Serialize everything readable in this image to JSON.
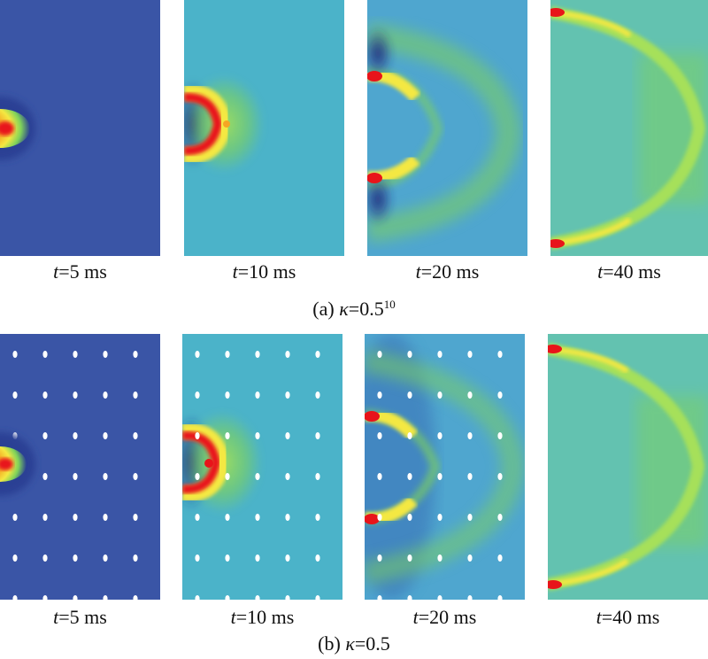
{
  "figure": {
    "row_a": {
      "caption_prefix": "(a) ",
      "kappa_symbol": "κ",
      "caption_value": "=0.5",
      "caption_exponent": "10",
      "panels": [
        {
          "t_symbol": "t",
          "time": "=5 ms"
        },
        {
          "t_symbol": "t",
          "time": "=10 ms"
        },
        {
          "t_symbol": "t",
          "time": "=20 ms"
        },
        {
          "t_symbol": "t",
          "time": "=40 ms"
        }
      ]
    },
    "row_b": {
      "caption_prefix": "(b) ",
      "kappa_symbol": "κ",
      "caption_value": "=0.5",
      "panels": [
        {
          "t_symbol": "t",
          "time": "=5 ms"
        },
        {
          "t_symbol": "t",
          "time": "=10 ms"
        },
        {
          "t_symbol": "t",
          "time": "=20 ms"
        },
        {
          "t_symbol": "t",
          "time": "=40 ms"
        }
      ]
    }
  },
  "colors": {
    "background_5ms": "#3a55a6",
    "background_10ms": "#4bb3c9",
    "background_20ms": "#4fa6cf",
    "background_40ms": "#63c2b0",
    "wave_green": "#7fd35a",
    "hot_red": "#e8141a",
    "hot_orange": "#f5a623",
    "hot_yellow": "#f4e842",
    "dark_blue": "#1f2a7a",
    "pile_white": "#ffffff"
  }
}
